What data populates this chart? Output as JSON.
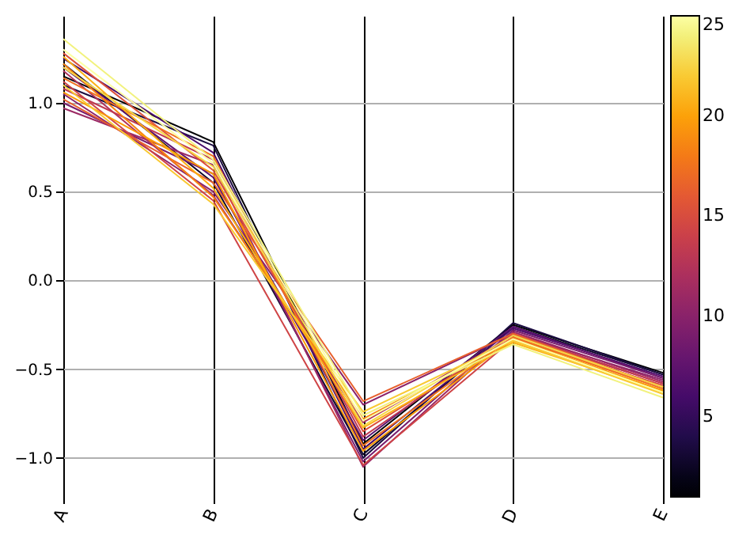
{
  "chart_data": {
    "type": "line",
    "categories": [
      "A",
      "B",
      "C",
      "D",
      "E"
    ],
    "ylim": [
      -1.21,
      1.49
    ],
    "yticks": [
      {
        "value": -1,
        "label": "−1.0"
      },
      {
        "value": -0.5,
        "label": "−0.5"
      },
      {
        "value": 0,
        "label": "0.0"
      },
      {
        "value": 0.5,
        "label": "0.5"
      },
      {
        "value": 1,
        "label": "1.0"
      }
    ],
    "grid": true,
    "clim": [
      1,
      25
    ],
    "cticks": [
      5,
      10,
      15,
      20,
      25
    ],
    "series": [
      {
        "color": "#000004",
        "values": [
          1.15,
          0.78,
          -0.92,
          -0.25,
          -0.52
        ]
      },
      {
        "color": "#0d0829",
        "values": [
          1.22,
          0.55,
          -0.98,
          -0.26,
          -0.53
        ]
      },
      {
        "color": "#1b0c41",
        "values": [
          1.1,
          0.76,
          -1.0,
          -0.24,
          -0.53
        ]
      },
      {
        "color": "#4a0c6b",
        "values": [
          1.25,
          0.72,
          -0.95,
          -0.27,
          -0.54
        ]
      },
      {
        "color": "#5d126e",
        "values": [
          1.2,
          0.58,
          -0.9,
          -0.26,
          -0.55
        ]
      },
      {
        "color": "#781c6d",
        "values": [
          1.0,
          0.6,
          -1.02,
          -0.28,
          -0.55
        ]
      },
      {
        "color": "#8a226a",
        "values": [
          1.05,
          0.5,
          -0.7,
          -0.3,
          -0.56
        ]
      },
      {
        "color": "#9c2964",
        "values": [
          0.97,
          0.65,
          -1.05,
          -0.29,
          -0.57
        ]
      },
      {
        "color": "#ae305c",
        "values": [
          1.18,
          0.48,
          -0.8,
          -0.31,
          -0.58
        ]
      },
      {
        "color": "#bf3952",
        "values": [
          1.08,
          0.68,
          -0.88,
          -0.3,
          -0.58
        ]
      },
      {
        "color": "#cf4446",
        "values": [
          1.12,
          0.45,
          -1.04,
          -0.33,
          -0.59
        ]
      },
      {
        "color": "#dd513a",
        "values": [
          1.28,
          0.62,
          -0.85,
          -0.32,
          -0.6
        ]
      },
      {
        "color": "#e8602d",
        "values": [
          1.02,
          0.55,
          -0.68,
          -0.3,
          -0.6
        ]
      },
      {
        "color": "#f1711f",
        "values": [
          1.14,
          0.7,
          -0.93,
          -0.32,
          -0.61
        ]
      },
      {
        "color": "#f8850f",
        "values": [
          1.22,
          0.47,
          -0.78,
          -0.34,
          -0.62
        ]
      },
      {
        "color": "#fb9b06",
        "values": [
          1.06,
          0.6,
          -0.96,
          -0.33,
          -0.62
        ]
      },
      {
        "color": "#fcb014",
        "values": [
          1.26,
          0.52,
          -0.83,
          -0.35,
          -0.63
        ]
      },
      {
        "color": "#f9c932",
        "values": [
          1.1,
          0.43,
          -0.74,
          -0.34,
          -0.64
        ]
      },
      {
        "color": "#f6d746",
        "values": [
          1.2,
          0.64,
          -0.82,
          -0.31,
          -0.6
        ]
      },
      {
        "color": "#f2f27d",
        "values": [
          1.36,
          0.68,
          -0.76,
          -0.36,
          -0.66
        ]
      },
      {
        "color": "#fcffa4",
        "values": [
          1.3,
          0.66,
          -0.79,
          -0.33,
          -0.63
        ]
      }
    ]
  }
}
